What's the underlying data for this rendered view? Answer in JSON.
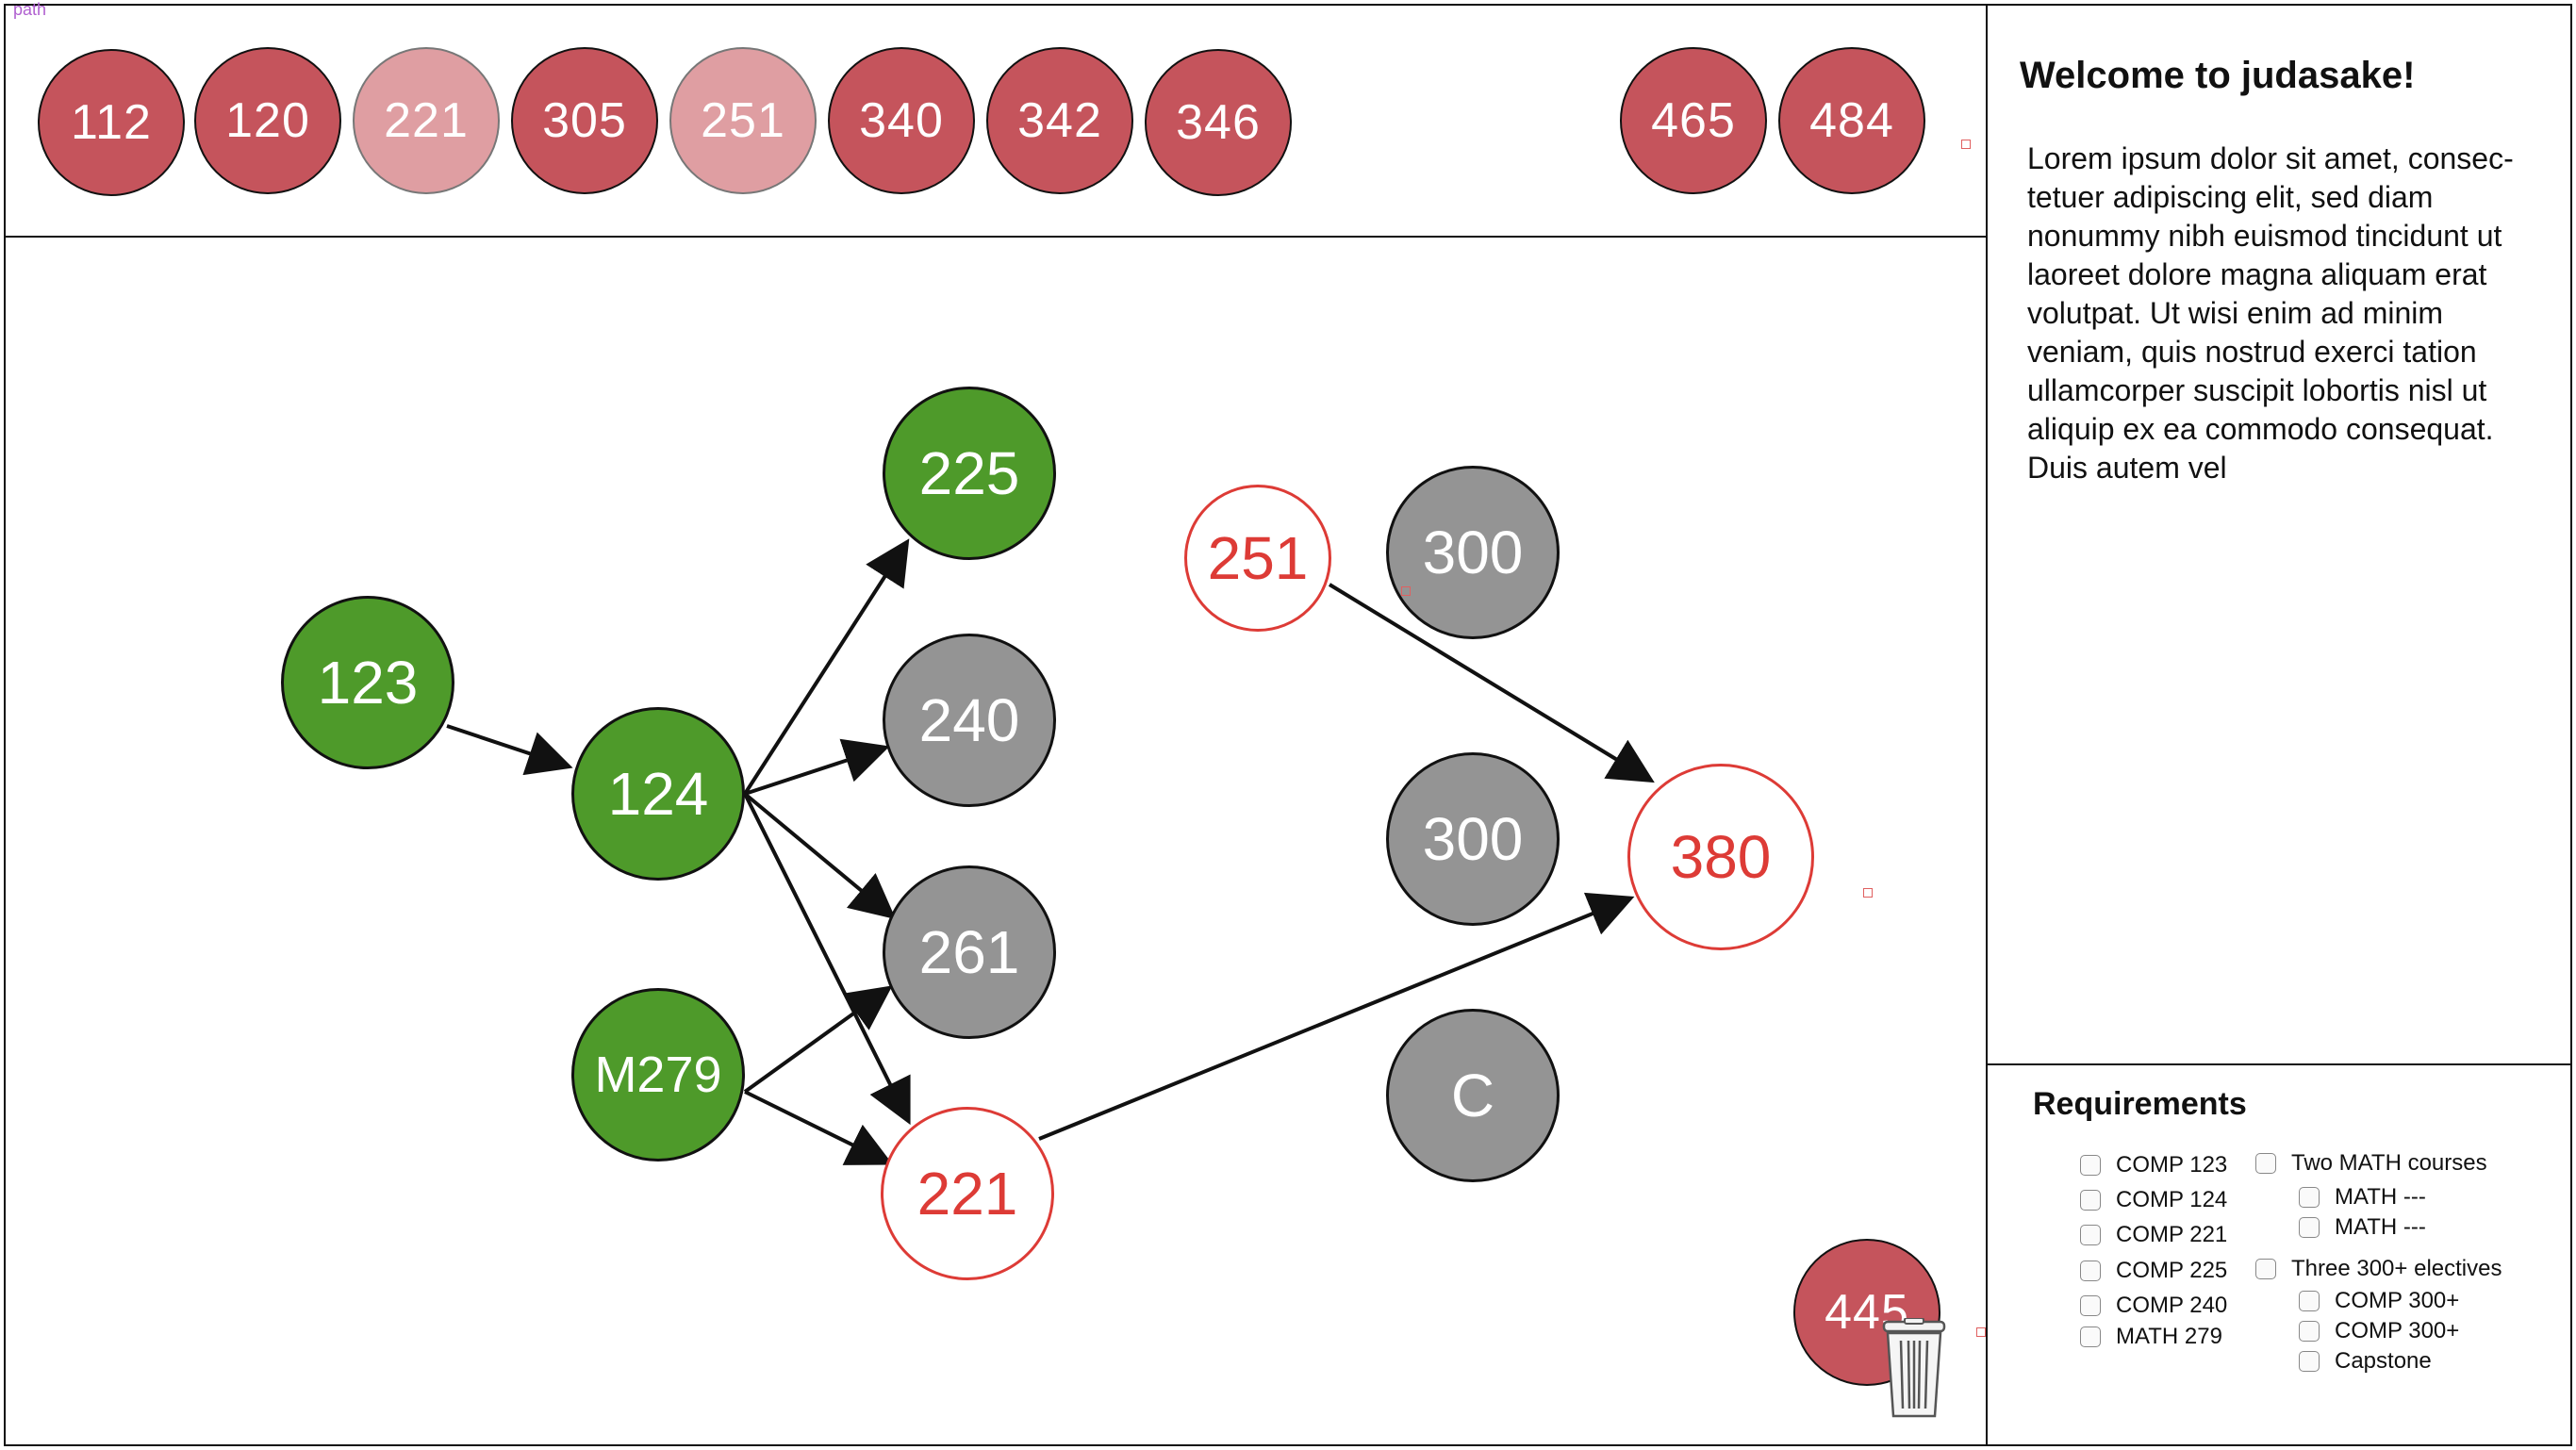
{
  "app": {
    "corner_tag": "path"
  },
  "tray": {
    "courses": [
      {
        "label": "112",
        "state": "available"
      },
      {
        "label": "120",
        "state": "available"
      },
      {
        "label": "221",
        "state": "placed"
      },
      {
        "label": "305",
        "state": "available"
      },
      {
        "label": "251",
        "state": "placed"
      },
      {
        "label": "340",
        "state": "available"
      },
      {
        "label": "342",
        "state": "available"
      },
      {
        "label": "346",
        "state": "available"
      },
      {
        "label": "465",
        "state": "available"
      },
      {
        "label": "484",
        "state": "available"
      }
    ]
  },
  "graph": {
    "nodes": [
      {
        "id": "n123",
        "label": "123",
        "status": "completed"
      },
      {
        "id": "n124",
        "label": "124",
        "status": "completed"
      },
      {
        "id": "nM279",
        "label": "M279",
        "status": "completed"
      },
      {
        "id": "n225",
        "label": "225",
        "status": "completed"
      },
      {
        "id": "n240",
        "label": "240",
        "status": "locked"
      },
      {
        "id": "n261",
        "label": "261",
        "status": "locked"
      },
      {
        "id": "n221",
        "label": "221",
        "status": "selected"
      },
      {
        "id": "n251",
        "label": "251",
        "status": "selected"
      },
      {
        "id": "n300a",
        "label": "300",
        "status": "locked"
      },
      {
        "id": "n300b",
        "label": "300",
        "status": "locked"
      },
      {
        "id": "nC",
        "label": "C",
        "status": "locked"
      },
      {
        "id": "n380",
        "label": "380",
        "status": "selected"
      }
    ],
    "dragging_node": {
      "label": "445"
    },
    "colors": {
      "completed": "#4e9a2a",
      "locked": "#949494",
      "selected": "#dd3b36",
      "tray": "#c5545c",
      "tray_faded": "#df9ea2"
    }
  },
  "info": {
    "title": "Welcome to judasake!",
    "body": "Lorem ipsum dolor sit amet, consec-tetuer adipiscing elit, sed diam nonummy nibh euismod tincidunt ut laoreet dolore magna aliquam erat volutpat. Ut wisi enim ad minim veniam, quis nostrud exerci tation ullamcorper suscipit lobortis nisl ut aliquip ex ea commodo consequat. Duis autem vel"
  },
  "requirements": {
    "title": "Requirements",
    "left": [
      "COMP 123",
      "COMP 124",
      "COMP 221",
      "COMP 225",
      "COMP 240",
      "MATH 279"
    ],
    "right": [
      {
        "label": "Two MATH courses",
        "level": 0
      },
      {
        "label": "MATH ---",
        "level": 1
      },
      {
        "label": "MATH ---",
        "level": 1
      },
      {
        "label": "Three 300+ electives",
        "level": 0
      },
      {
        "label": "COMP 300+",
        "level": 1
      },
      {
        "label": "COMP 300+",
        "level": 1
      },
      {
        "label": "Capstone",
        "level": 1
      }
    ]
  },
  "icons": {
    "trash": "trash-icon"
  }
}
